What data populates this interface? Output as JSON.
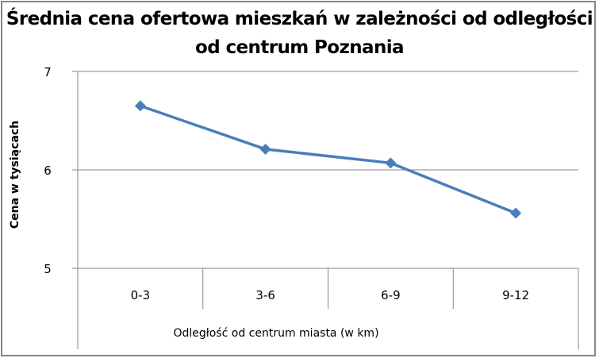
{
  "chart_data": {
    "type": "line",
    "title": "Średnia cena ofertowa mieszkań w zależności od odległości od centrum Poznania",
    "title_lines": [
      "Średnia cena ofertowa mieszkań w zależności od odległości",
      "od centrum Poznania"
    ],
    "xlabel": "Odległość od centrum miasta (w km)",
    "ylabel": "Cena w tysiącach",
    "categories": [
      "0-3",
      "3-6",
      "6-9",
      "9-12"
    ],
    "values": [
      6.65,
      6.21,
      6.07,
      5.56
    ],
    "ylim": [
      5,
      7
    ],
    "yticks": [
      "5",
      "6",
      "7"
    ],
    "grid": true,
    "legend": "none",
    "series_color": "#4A7EBB",
    "marker": "diamond"
  }
}
